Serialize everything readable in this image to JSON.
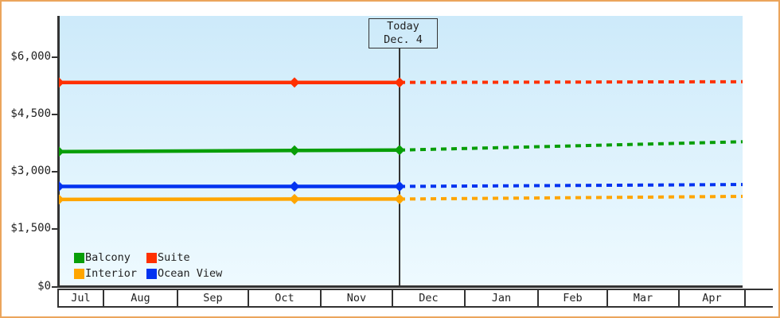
{
  "colors": {
    "frame_border": "#eba55c",
    "axis": "#333333",
    "text": "#222222",
    "plot_bg_top": "#cdeafa",
    "plot_bg_bottom": "#eefaff",
    "today_line": "#333333"
  },
  "chart_data": {
    "type": "line",
    "title": "",
    "xlabel": "",
    "ylabel": "",
    "ylim": [
      0,
      6000
    ],
    "grid": false,
    "legend_position": "bottom-left",
    "y_ticks": [
      {
        "value": 6000,
        "label": "$6,000"
      },
      {
        "value": 4500,
        "label": "$4,500"
      },
      {
        "value": 3000,
        "label": "$3,000"
      },
      {
        "value": 1500,
        "label": "$1,500"
      },
      {
        "value": 0,
        "label": "$0"
      }
    ],
    "x_tick_labels": [
      "Jul",
      "Aug",
      "Sep",
      "Oct",
      "Nov",
      "Dec",
      "Jan",
      "Feb",
      "Mar",
      "Apr"
    ],
    "annotation": {
      "label": "Today",
      "date": "Dec. 4"
    },
    "history_point_positions": [
      "Jul (chart start)",
      "late Oct",
      "Dec 4 (today)"
    ],
    "forecast_style": "dotted",
    "series": [
      {
        "name": "Balcony",
        "color": "#089e08",
        "history_values": [
          3530,
          3560,
          3570
        ],
        "forecast_end_value": 3790
      },
      {
        "name": "Suite",
        "color": "#ff3000",
        "history_values": [
          5340,
          5340,
          5340
        ],
        "forecast_end_value": 5360
      },
      {
        "name": "Interior",
        "color": "#ffa500",
        "history_values": [
          2280,
          2290,
          2290
        ],
        "forecast_end_value": 2360
      },
      {
        "name": "Ocean View",
        "color": "#0333f0",
        "history_values": [
          2620,
          2620,
          2620
        ],
        "forecast_end_value": 2670
      }
    ]
  }
}
